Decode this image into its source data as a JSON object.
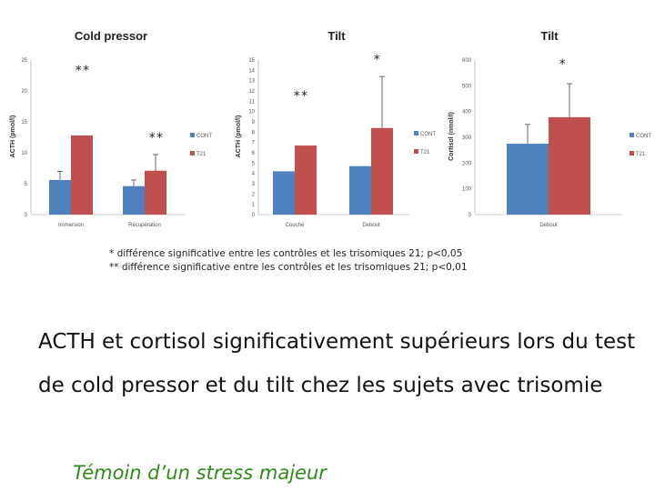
{
  "chart_data": [
    {
      "type": "bar",
      "title": "Cold pressor",
      "ylabel": "ACTH (pmol/l)",
      "ylim": [
        0,
        25
      ],
      "yticks": [
        "0",
        "5",
        "10",
        "15",
        "20",
        "25"
      ],
      "categories": [
        "Immersion",
        "Récupération"
      ],
      "series": [
        {
          "name": "CONT",
          "color": "#4f81bd",
          "values": [
            5.6,
            4.6
          ],
          "errors": [
            1.4,
            1.0
          ]
        },
        {
          "name": "T21",
          "color": "#c0504d",
          "values": [
            12.8,
            7.1
          ],
          "errors": [
            0,
            2.6
          ]
        }
      ],
      "legend": "right",
      "annotations": [
        "**",
        "**"
      ]
    },
    {
      "type": "bar",
      "title": "Tilt",
      "ylabel": "ACTH (pmol/l)",
      "ylim": [
        0,
        15
      ],
      "yticks": [
        "0",
        "1",
        "2",
        "3",
        "4",
        "5",
        "6",
        "7",
        "8",
        "9",
        "10",
        "11",
        "12",
        "13",
        "14",
        "15"
      ],
      "categories": [
        "Couché",
        "Debout"
      ],
      "series": [
        {
          "name": "CONT",
          "color": "#4f81bd",
          "values": [
            4.2,
            4.7
          ],
          "errors": [
            0,
            0
          ]
        },
        {
          "name": "T21",
          "color": "#c0504d",
          "values": [
            6.7,
            8.4
          ],
          "errors": [
            0,
            5.0
          ]
        }
      ],
      "legend": "right",
      "annotations": [
        "**",
        "*"
      ]
    },
    {
      "type": "bar",
      "title": "Tilt",
      "ylabel": "Cortisol (nmol/l)",
      "ylim": [
        0,
        600
      ],
      "yticks": [
        "0",
        "100",
        "200",
        "300",
        "400",
        "500",
        "600"
      ],
      "categories": [
        "Debout"
      ],
      "series": [
        {
          "name": "CONT",
          "color": "#4f81bd",
          "values": [
            275
          ],
          "errors": [
            75
          ]
        },
        {
          "name": "T21",
          "color": "#c0504d",
          "values": [
            378
          ],
          "errors": [
            130
          ]
        }
      ],
      "legend": "right",
      "annotations": [
        "*"
      ]
    }
  ],
  "notes": [
    "* différence significative entre les contrôles et les trisomiques 21; p<0,05",
    "** différence significative entre les contrôles et les trisomiques 21; p<0,01"
  ],
  "body_text": "ACTH et cortisol significativement supérieurs lors du test de cold pressor et du tilt chez les sujets avec trisomie",
  "conclusion": "Témoin d’un stress majeur"
}
